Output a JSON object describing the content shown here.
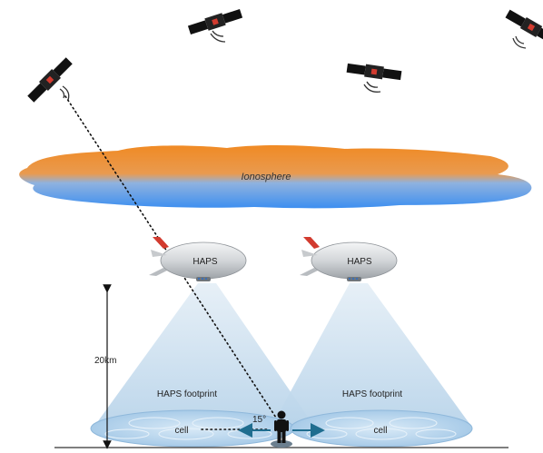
{
  "labels": {
    "ionosphere": "Ionosphere",
    "haps_left": "HAPS",
    "haps_right": "HAPS",
    "footprint_left": "HAPS footprint",
    "footprint_right": "HAPS footprint",
    "cell_left": "cell",
    "cell_right": "cell",
    "angle": "15°",
    "altitude": "20km"
  },
  "colors": {
    "cloud_top": "#f08a24",
    "cloud_bottom": "#3d8ff0",
    "beam": "#cfe3f2",
    "cell": "#bcd9f0",
    "satellite_panel": "#111111",
    "haps_body": "#d6d9dc",
    "haps_fin": "#d23b2f",
    "arrow": "#1f6d8f"
  },
  "icons": [
    "satellite-icon",
    "airship-icon",
    "person-icon",
    "signal-icon"
  ]
}
